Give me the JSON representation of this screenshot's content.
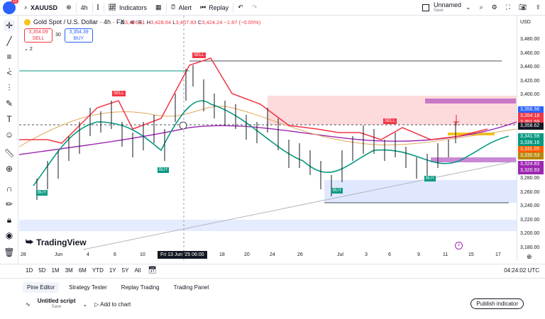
{
  "topbar": {
    "avatar_badge": "11",
    "symbol": "XAUUSD",
    "interval": "4h",
    "indicators": "Indicators",
    "alert": "Alert",
    "replay": "Replay",
    "layout_name": "Unnamed",
    "layout_status": "Save"
  },
  "legend": {
    "title": "Gold Spot / U.S. Dollar · 4h · FX",
    "open_lbl": "O",
    "open": "3,426.11",
    "high_lbl": "H",
    "high": "3,428.64",
    "low_lbl": "L",
    "low": "3,407.83",
    "close_lbl": "C",
    "close": "3,424.24",
    "change": "−1.87 (−0.05%)",
    "sell_price": "3,354.09",
    "sell_label": "SELL",
    "spread": "30",
    "buy_price": "3,354.39",
    "buy_label": "BUY",
    "collapse_count": "2"
  },
  "price_axis": {
    "currency": "USD",
    "labels": [
      "3,480.00",
      "3,460.00",
      "3,440.00",
      "3,420.00",
      "3,400.00",
      "3,380.00",
      "3,360.00",
      "3,340.00",
      "3,320.00",
      "3,300.00",
      "3,280.00",
      "3,260.00",
      "3,240.00",
      "3,220.00",
      "3,200.00",
      "3,180.00"
    ],
    "tags": [
      {
        "value": "3,356.56",
        "color": "#2962ff"
      },
      {
        "value": "3,354.18",
        "color": "#f23645"
      },
      {
        "value": "3,351.59",
        "color": "#f23645"
      },
      {
        "value": "3,358.62",
        "color": "#131722"
      },
      {
        "value": "3,341.59",
        "color": "#089981"
      },
      {
        "value": "3,336.16",
        "color": "#089981"
      },
      {
        "value": "3,331.05",
        "color": "#ff5d00"
      },
      {
        "value": "3,330.53",
        "color": "#b8860b"
      },
      {
        "value": "3,324.83",
        "color": "#9c27b0"
      },
      {
        "value": "3,320.93",
        "color": "#9c27b0"
      }
    ]
  },
  "chart_labels": {
    "sell1": "SELL",
    "sell2": "SELL",
    "sell3": "SELL",
    "buy1": "BUY",
    "buy2": "BUY",
    "buy3": "BUY",
    "buy4": "BUY"
  },
  "time_axis": {
    "labels": [
      "28",
      "Jun",
      "4",
      "6",
      "10",
      "18",
      "20",
      "24",
      "26",
      "Jul",
      "3",
      "6",
      "9",
      "11",
      "15",
      "17"
    ],
    "highlight": "Fri 13 Jun '25   06:00",
    "clock": "04:24:02 UTC"
  },
  "ranges": [
    "1D",
    "5D",
    "1M",
    "3M",
    "6M",
    "YTD",
    "1Y",
    "5Y",
    "All"
  ],
  "brand": "TradingView",
  "bottom": {
    "tabs": [
      "Pine Editor",
      "Strategy Tester",
      "Replay Trading",
      "Trading Panel"
    ],
    "script_name": "Untitled script",
    "script_status": "Save",
    "add_to_chart": "Add to chart",
    "publish": "Publish indicator"
  }
}
